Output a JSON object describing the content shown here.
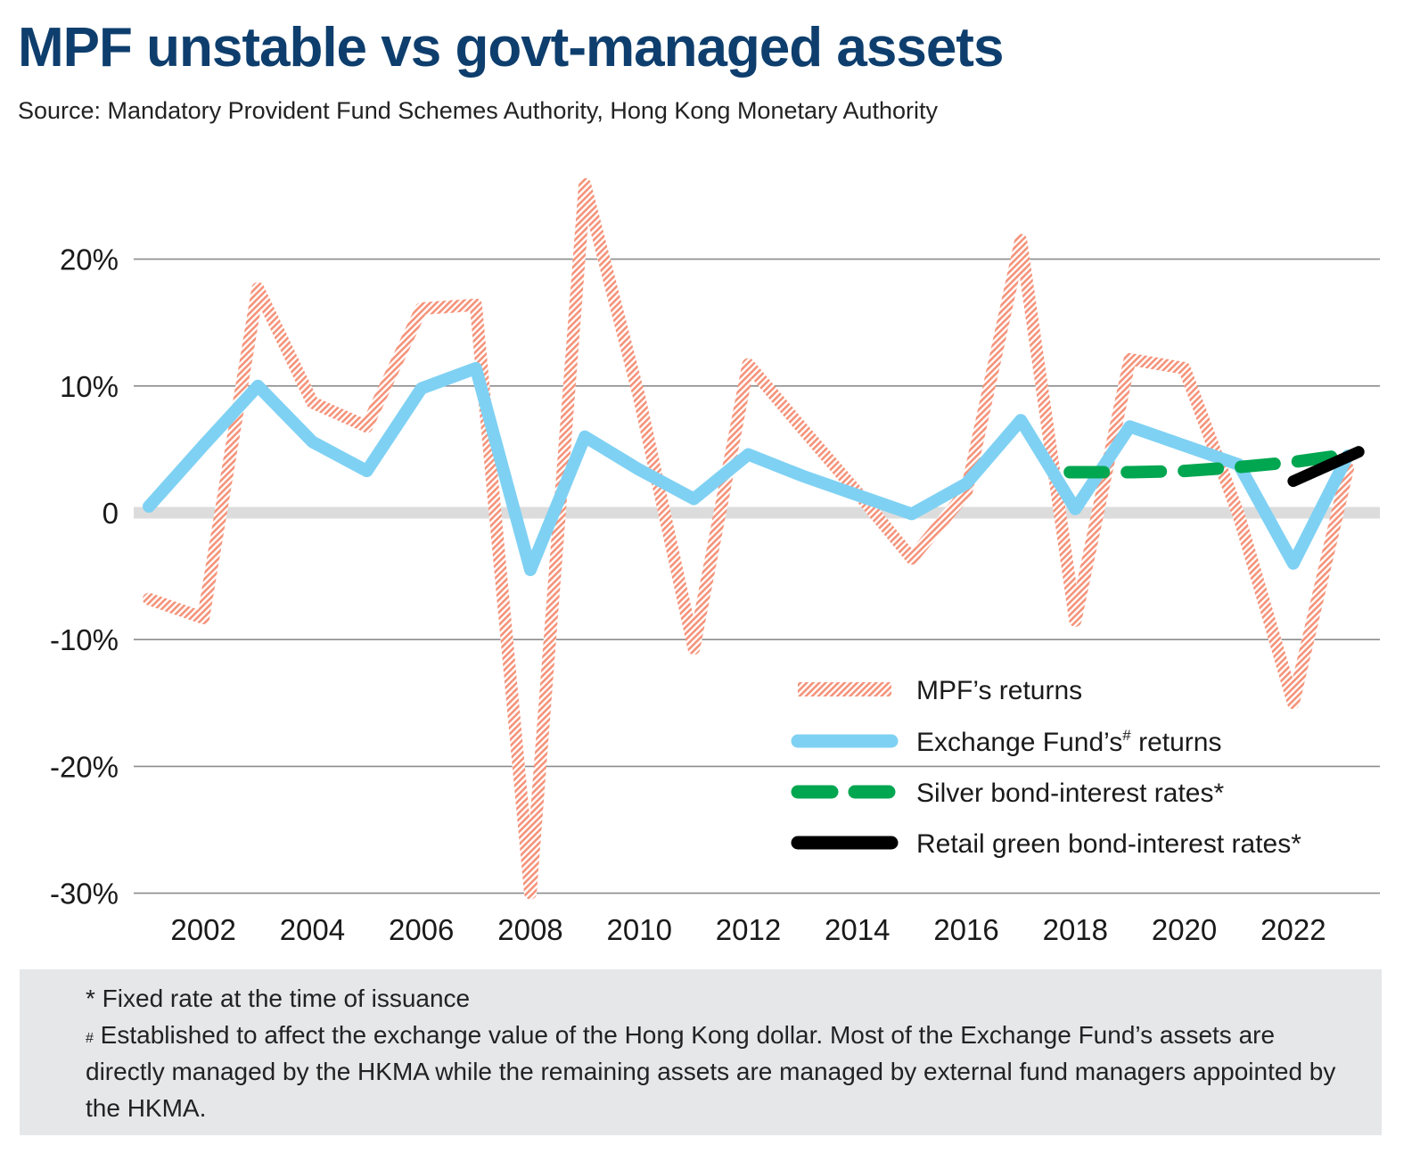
{
  "title": "MPF unstable vs govt-managed assets",
  "subtitle": "Source: Mandatory Provident Fund Schemes Authority, Hong Kong Monetary Authority",
  "chart_data": {
    "type": "line",
    "x": [
      2001,
      2002,
      2003,
      2004,
      2005,
      2006,
      2007,
      2008,
      2009,
      2010,
      2011,
      2012,
      2013,
      2014,
      2015,
      2016,
      2017,
      2018,
      2019,
      2020,
      2021,
      2022,
      2023
    ],
    "x_ticks": [
      2002,
      2004,
      2006,
      2008,
      2010,
      2012,
      2014,
      2016,
      2018,
      2020,
      2022
    ],
    "x_tick_labels": [
      "2002",
      "2004",
      "2006",
      "2008",
      "2010",
      "2012",
      "2014",
      "2016",
      "2018",
      "2020",
      "2022"
    ],
    "y_ticks": [
      20,
      10,
      0,
      -10,
      -20,
      -30
    ],
    "y_tick_labels": [
      "20%",
      "10%",
      "0",
      "-10%",
      "-20%",
      "-30%"
    ],
    "ylim": [
      -30,
      26
    ],
    "grid": true,
    "legend_position": "bottom-right",
    "series": [
      {
        "name": "MPF’s returns",
        "color": "#f4937a",
        "style": "hatched",
        "x": [
          2001,
          2002,
          2003,
          2004,
          2005,
          2006,
          2007,
          2008,
          2009,
          2010,
          2011,
          2012,
          2013,
          2014,
          2015,
          2016,
          2017,
          2018,
          2019,
          2020,
          2021,
          2022,
          2023
        ],
        "y": [
          -6.8,
          -8.3,
          17.7,
          8.7,
          6.8,
          16.1,
          16.4,
          -30.0,
          25.9,
          9.1,
          -10.7,
          11.7,
          6.6,
          1.6,
          -3.6,
          1.6,
          21.5,
          -8.5,
          12.1,
          11.4,
          -0.2,
          -15.0,
          3.5
        ]
      },
      {
        "name": "Exchange Fund’s# returns",
        "color": "#7fd1f3",
        "style": "solid",
        "x": [
          2001,
          2002,
          2003,
          2004,
          2005,
          2006,
          2007,
          2008,
          2009,
          2010,
          2011,
          2012,
          2013,
          2014,
          2015,
          2016,
          2017,
          2018,
          2019,
          2020,
          2021,
          2022,
          2023
        ],
        "y": [
          0.5,
          5.3,
          10.0,
          5.6,
          3.3,
          9.8,
          11.4,
          -4.5,
          6.0,
          3.4,
          1.1,
          4.6,
          2.9,
          1.4,
          -0.1,
          2.3,
          7.3,
          0.3,
          6.8,
          5.3,
          3.8,
          -4.0,
          4.5
        ]
      },
      {
        "name": "Silver bond-interest rates*",
        "color": "#00a650",
        "style": "dashed",
        "x": [
          2017.9,
          2019,
          2020,
          2021,
          2022,
          2023
        ],
        "y": [
          3.2,
          3.2,
          3.3,
          3.6,
          4.0,
          4.6
        ]
      },
      {
        "name": "Retail green bond-interest rates*",
        "color": "#000000",
        "style": "solid",
        "x": [
          2022,
          2023.2
        ],
        "y": [
          2.5,
          4.8
        ]
      }
    ]
  },
  "legend": [
    {
      "label": "MPF’s returns",
      "sup": ""
    },
    {
      "label": "Exchange Fund’s",
      "sup": "#",
      "suffix": " returns"
    },
    {
      "label": "Silver bond-interest rates*",
      "sup": ""
    },
    {
      "label": "Retail green bond-interest rates*",
      "sup": ""
    }
  ],
  "footnotes": {
    "fixed_rate": "* Fixed rate at the time of issuance",
    "exchange_fund_sup": "#",
    "exchange_fund": " Established to affect the exchange value of the Hong Kong dollar. Most of the Exchange Fund’s assets are directly managed by the HKMA while the remaining assets are managed by external fund managers appointed by the HKMA."
  }
}
